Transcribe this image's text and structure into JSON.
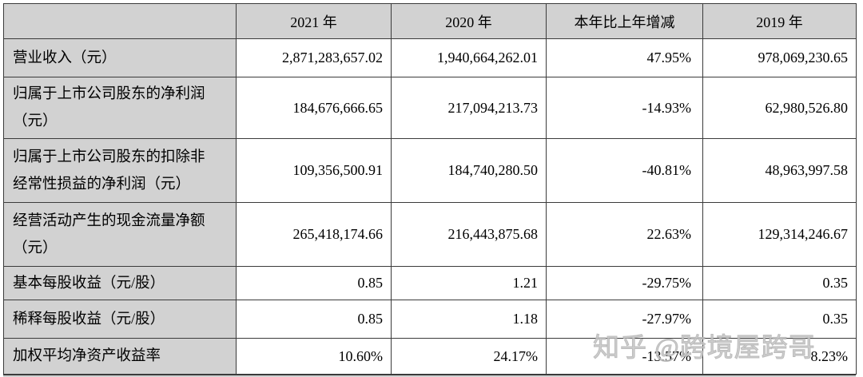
{
  "colors": {
    "background": "#ffffff",
    "cell_gray": "#d2d2d2",
    "border": "#3b3b3b",
    "text": "#000000",
    "watermark": "#c7c7c7"
  },
  "table": {
    "columns": [
      "",
      "2021 年",
      "2020 年",
      "本年比上年增减",
      "2019 年"
    ],
    "rows": [
      {
        "label": "营业收入（元）",
        "values": [
          "2,871,283,657.02",
          "1,940,664,262.01",
          "47.95%",
          "978,069,230.65"
        ]
      },
      {
        "label": "归属于上市公司股东的净利润（元）",
        "values": [
          "184,676,666.65",
          "217,094,213.73",
          "-14.93%",
          "62,980,526.80"
        ]
      },
      {
        "label": "归属于上市公司股东的扣除非经常性损益的净利润（元）",
        "values": [
          "109,356,500.91",
          "184,740,280.50",
          "-40.81%",
          "48,963,997.58"
        ]
      },
      {
        "label": "经营活动产生的现金流量净额（元）",
        "values": [
          "265,418,174.66",
          "216,443,875.68",
          "22.63%",
          "129,314,246.67"
        ]
      },
      {
        "label": "基本每股收益（元/股）",
        "values": [
          "0.85",
          "1.21",
          "-29.75%",
          "0.35"
        ]
      },
      {
        "label": "稀释每股收益（元/股）",
        "values": [
          "0.85",
          "1.18",
          "-27.97%",
          "0.35"
        ]
      },
      {
        "label": "加权平均净资产收益率",
        "values": [
          "10.60%",
          "24.17%",
          "-13.57%",
          "8.23%"
        ]
      }
    ]
  },
  "watermark": {
    "text": "知乎 @跨境屋跨哥"
  }
}
